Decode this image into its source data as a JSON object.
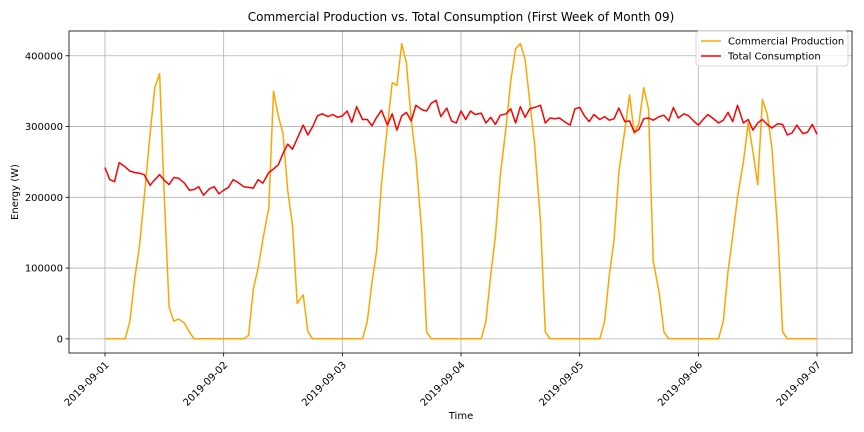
{
  "chart_data": {
    "type": "line",
    "title": "Commercial Production vs. Total Consumption (First Week of Month 09)",
    "xlabel": "Time",
    "ylabel": "Energy (W)",
    "x_range": [
      0,
      6
    ],
    "ylim": [
      -20000,
      435000
    ],
    "grid": true,
    "legend_position": "top-right",
    "x_ticks": [
      {
        "pos": 0,
        "label": "2019-09-01"
      },
      {
        "pos": 1,
        "label": "2019-09-02"
      },
      {
        "pos": 2,
        "label": "2019-09-03"
      },
      {
        "pos": 3,
        "label": "2019-09-04"
      },
      {
        "pos": 4,
        "label": "2019-09-05"
      },
      {
        "pos": 5,
        "label": "2019-09-06"
      },
      {
        "pos": 6,
        "label": "2019-09-07"
      }
    ],
    "y_ticks": [
      {
        "value": 0,
        "label": "0"
      },
      {
        "value": 100000,
        "label": "100000"
      },
      {
        "value": 200000,
        "label": "200000"
      },
      {
        "value": 300000,
        "label": "300000"
      },
      {
        "value": 400000,
        "label": "400000"
      }
    ],
    "series": [
      {
        "name": "Commercial Production",
        "color": "#ffa500",
        "points": [
          [
            0.0,
            0
          ],
          [
            0.04,
            0
          ],
          [
            0.08,
            0
          ],
          [
            0.12,
            0
          ],
          [
            0.17,
            0
          ],
          [
            0.21,
            25000
          ],
          [
            0.25,
            85000
          ],
          [
            0.29,
            130000
          ],
          [
            0.33,
            200000
          ],
          [
            0.38,
            290000
          ],
          [
            0.42,
            355000
          ],
          [
            0.46,
            375000
          ],
          [
            0.5,
            200000
          ],
          [
            0.54,
            45000
          ],
          [
            0.58,
            25000
          ],
          [
            0.62,
            28000
          ],
          [
            0.67,
            22000
          ],
          [
            0.71,
            10000
          ],
          [
            0.75,
            0
          ],
          [
            0.79,
            0
          ],
          [
            0.83,
            0
          ],
          [
            0.88,
            0
          ],
          [
            0.92,
            0
          ],
          [
            0.96,
            0
          ],
          [
            1.0,
            0
          ],
          [
            1.04,
            0
          ],
          [
            1.08,
            0
          ],
          [
            1.12,
            0
          ],
          [
            1.17,
            0
          ],
          [
            1.21,
            5000
          ],
          [
            1.25,
            70000
          ],
          [
            1.29,
            100000
          ],
          [
            1.33,
            140000
          ],
          [
            1.38,
            185000
          ],
          [
            1.42,
            350000
          ],
          [
            1.46,
            315000
          ],
          [
            1.5,
            290000
          ],
          [
            1.54,
            210000
          ],
          [
            1.58,
            160000
          ],
          [
            1.62,
            50000
          ],
          [
            1.67,
            62000
          ],
          [
            1.71,
            10000
          ],
          [
            1.75,
            0
          ],
          [
            1.79,
            0
          ],
          [
            1.83,
            0
          ],
          [
            1.88,
            0
          ],
          [
            1.92,
            0
          ],
          [
            1.96,
            0
          ],
          [
            2.0,
            0
          ],
          [
            2.04,
            0
          ],
          [
            2.08,
            0
          ],
          [
            2.12,
            0
          ],
          [
            2.17,
            0
          ],
          [
            2.21,
            25000
          ],
          [
            2.25,
            80000
          ],
          [
            2.29,
            125000
          ],
          [
            2.33,
            220000
          ],
          [
            2.38,
            300000
          ],
          [
            2.42,
            362000
          ],
          [
            2.46,
            358000
          ],
          [
            2.5,
            417000
          ],
          [
            2.54,
            390000
          ],
          [
            2.58,
            310000
          ],
          [
            2.62,
            255000
          ],
          [
            2.67,
            150000
          ],
          [
            2.71,
            10000
          ],
          [
            2.75,
            0
          ],
          [
            2.79,
            0
          ],
          [
            2.83,
            0
          ],
          [
            2.88,
            0
          ],
          [
            2.92,
            0
          ],
          [
            2.96,
            0
          ],
          [
            3.0,
            0
          ],
          [
            3.04,
            0
          ],
          [
            3.08,
            0
          ],
          [
            3.12,
            0
          ],
          [
            3.17,
            0
          ],
          [
            3.21,
            25000
          ],
          [
            3.25,
            90000
          ],
          [
            3.29,
            145000
          ],
          [
            3.33,
            230000
          ],
          [
            3.38,
            300000
          ],
          [
            3.42,
            365000
          ],
          [
            3.46,
            410000
          ],
          [
            3.5,
            417000
          ],
          [
            3.54,
            395000
          ],
          [
            3.58,
            335000
          ],
          [
            3.62,
            275000
          ],
          [
            3.67,
            165000
          ],
          [
            3.71,
            10000
          ],
          [
            3.75,
            0
          ],
          [
            3.79,
            0
          ],
          [
            3.83,
            0
          ],
          [
            3.88,
            0
          ],
          [
            3.92,
            0
          ],
          [
            3.96,
            0
          ],
          [
            4.0,
            0
          ],
          [
            4.04,
            0
          ],
          [
            4.08,
            0
          ],
          [
            4.12,
            0
          ],
          [
            4.17,
            0
          ],
          [
            4.21,
            25000
          ],
          [
            4.25,
            90000
          ],
          [
            4.29,
            140000
          ],
          [
            4.33,
            235000
          ],
          [
            4.38,
            295000
          ],
          [
            4.42,
            345000
          ],
          [
            4.46,
            290000
          ],
          [
            4.5,
            305000
          ],
          [
            4.54,
            355000
          ],
          [
            4.58,
            325000
          ],
          [
            4.62,
            110000
          ],
          [
            4.67,
            65000
          ],
          [
            4.71,
            10000
          ],
          [
            4.75,
            0
          ],
          [
            4.79,
            0
          ],
          [
            4.83,
            0
          ],
          [
            4.88,
            0
          ],
          [
            4.92,
            0
          ],
          [
            4.96,
            0
          ],
          [
            5.0,
            0
          ],
          [
            5.04,
            0
          ],
          [
            5.08,
            0
          ],
          [
            5.12,
            0
          ],
          [
            5.17,
            0
          ],
          [
            5.21,
            25000
          ],
          [
            5.25,
            95000
          ],
          [
            5.29,
            145000
          ],
          [
            5.33,
            200000
          ],
          [
            5.38,
            250000
          ],
          [
            5.42,
            305000
          ],
          [
            5.46,
            265000
          ],
          [
            5.5,
            218000
          ],
          [
            5.54,
            338000
          ],
          [
            5.58,
            318000
          ],
          [
            5.62,
            270000
          ],
          [
            5.67,
            150000
          ],
          [
            5.71,
            10000
          ],
          [
            5.75,
            0
          ],
          [
            5.79,
            0
          ],
          [
            5.83,
            0
          ],
          [
            5.88,
            0
          ],
          [
            5.92,
            0
          ],
          [
            5.96,
            0
          ],
          [
            6.0,
            0
          ]
        ]
      },
      {
        "name": "Total Consumption",
        "color": "#ff0000",
        "points": [
          [
            0.0,
            242000
          ],
          [
            0.04,
            225000
          ],
          [
            0.08,
            222000
          ],
          [
            0.12,
            249000
          ],
          [
            0.17,
            243000
          ],
          [
            0.21,
            237000
          ],
          [
            0.25,
            235000
          ],
          [
            0.29,
            234000
          ],
          [
            0.33,
            232000
          ],
          [
            0.38,
            217000
          ],
          [
            0.42,
            225000
          ],
          [
            0.46,
            232000
          ],
          [
            0.5,
            224000
          ],
          [
            0.54,
            218000
          ],
          [
            0.58,
            228000
          ],
          [
            0.62,
            227000
          ],
          [
            0.67,
            220000
          ],
          [
            0.71,
            210000
          ],
          [
            0.75,
            211000
          ],
          [
            0.79,
            215000
          ],
          [
            0.83,
            203000
          ],
          [
            0.88,
            212000
          ],
          [
            0.92,
            215000
          ],
          [
            0.96,
            205000
          ],
          [
            1.0,
            210000
          ],
          [
            1.04,
            214000
          ],
          [
            1.08,
            225000
          ],
          [
            1.12,
            221000
          ],
          [
            1.17,
            215000
          ],
          [
            1.21,
            214000
          ],
          [
            1.25,
            213000
          ],
          [
            1.29,
            225000
          ],
          [
            1.33,
            220000
          ],
          [
            1.38,
            235000
          ],
          [
            1.42,
            240000
          ],
          [
            1.46,
            246000
          ],
          [
            1.5,
            262000
          ],
          [
            1.54,
            275000
          ],
          [
            1.58,
            268000
          ],
          [
            1.62,
            283000
          ],
          [
            1.67,
            302000
          ],
          [
            1.71,
            288000
          ],
          [
            1.75,
            300000
          ],
          [
            1.79,
            315000
          ],
          [
            1.83,
            318000
          ],
          [
            1.88,
            314000
          ],
          [
            1.92,
            317000
          ],
          [
            1.96,
            313000
          ],
          [
            2.0,
            315000
          ],
          [
            2.04,
            322000
          ],
          [
            2.08,
            306000
          ],
          [
            2.12,
            328000
          ],
          [
            2.17,
            310000
          ],
          [
            2.21,
            310000
          ],
          [
            2.25,
            301000
          ],
          [
            2.29,
            313000
          ],
          [
            2.33,
            323000
          ],
          [
            2.38,
            302000
          ],
          [
            2.42,
            318000
          ],
          [
            2.46,
            295000
          ],
          [
            2.5,
            315000
          ],
          [
            2.54,
            320000
          ],
          [
            2.58,
            308000
          ],
          [
            2.62,
            330000
          ],
          [
            2.67,
            324000
          ],
          [
            2.71,
            322000
          ],
          [
            2.75,
            333000
          ],
          [
            2.79,
            337000
          ],
          [
            2.83,
            314000
          ],
          [
            2.88,
            326000
          ],
          [
            2.92,
            308000
          ],
          [
            2.96,
            305000
          ],
          [
            3.0,
            322000
          ],
          [
            3.04,
            310000
          ],
          [
            3.08,
            322000
          ],
          [
            3.12,
            317000
          ],
          [
            3.17,
            319000
          ],
          [
            3.21,
            305000
          ],
          [
            3.25,
            313000
          ],
          [
            3.29,
            303000
          ],
          [
            3.33,
            316000
          ],
          [
            3.38,
            318000
          ],
          [
            3.42,
            325000
          ],
          [
            3.46,
            305000
          ],
          [
            3.5,
            328000
          ],
          [
            3.54,
            313000
          ],
          [
            3.58,
            325000
          ],
          [
            3.62,
            327000
          ],
          [
            3.67,
            330000
          ],
          [
            3.71,
            305000
          ],
          [
            3.75,
            312000
          ],
          [
            3.79,
            311000
          ],
          [
            3.83,
            312000
          ],
          [
            3.88,
            306000
          ],
          [
            3.92,
            302000
          ],
          [
            3.96,
            325000
          ],
          [
            4.0,
            327000
          ],
          [
            4.04,
            315000
          ],
          [
            4.08,
            307000
          ],
          [
            4.12,
            317000
          ],
          [
            4.17,
            310000
          ],
          [
            4.21,
            314000
          ],
          [
            4.25,
            309000
          ],
          [
            4.29,
            311000
          ],
          [
            4.33,
            326000
          ],
          [
            4.38,
            307000
          ],
          [
            4.42,
            308000
          ],
          [
            4.46,
            292000
          ],
          [
            4.5,
            296000
          ],
          [
            4.54,
            311000
          ],
          [
            4.58,
            312000
          ],
          [
            4.62,
            309000
          ],
          [
            4.67,
            314000
          ],
          [
            4.71,
            316000
          ],
          [
            4.75,
            308000
          ],
          [
            4.79,
            327000
          ],
          [
            4.83,
            312000
          ],
          [
            4.88,
            318000
          ],
          [
            4.92,
            315000
          ],
          [
            4.96,
            308000
          ],
          [
            5.0,
            302000
          ],
          [
            5.04,
            310000
          ],
          [
            5.08,
            317000
          ],
          [
            5.12,
            312000
          ],
          [
            5.17,
            305000
          ],
          [
            5.21,
            309000
          ],
          [
            5.25,
            320000
          ],
          [
            5.29,
            307000
          ],
          [
            5.33,
            330000
          ],
          [
            5.38,
            305000
          ],
          [
            5.42,
            310000
          ],
          [
            5.46,
            295000
          ],
          [
            5.5,
            305000
          ],
          [
            5.54,
            310000
          ],
          [
            5.58,
            303000
          ],
          [
            5.62,
            298000
          ],
          [
            5.67,
            304000
          ],
          [
            5.71,
            303000
          ],
          [
            5.75,
            288000
          ],
          [
            5.79,
            291000
          ],
          [
            5.83,
            302000
          ],
          [
            5.88,
            290000
          ],
          [
            5.92,
            292000
          ],
          [
            5.96,
            303000
          ],
          [
            6.0,
            289000
          ]
        ]
      }
    ]
  }
}
